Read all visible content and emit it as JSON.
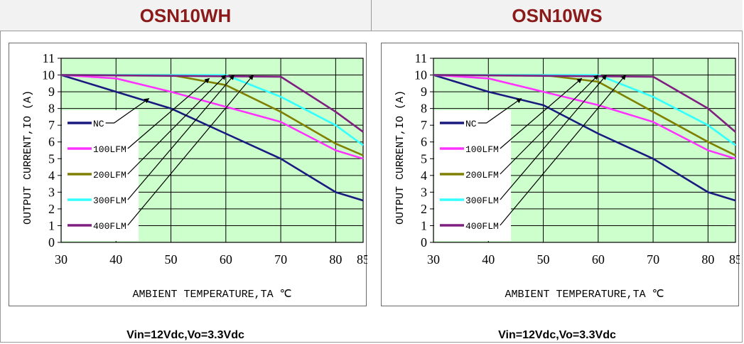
{
  "header": {
    "left_title": "OSN10WH",
    "right_title": "OSN10WS"
  },
  "chart_data": [
    {
      "type": "line",
      "title": "OSN10WH",
      "xlabel": "AMBIENT TEMPERATURE,TA ℃",
      "ylabel": "OUTPUT CURRENT,IO (A)",
      "caption": "Vin=12Vdc,Vo=3.3Vdc",
      "xlim": [
        30,
        85
      ],
      "ylim": [
        0,
        11
      ],
      "xticks": [
        30,
        40,
        50,
        60,
        70,
        80,
        85
      ],
      "yticks": [
        0,
        1,
        2,
        3,
        4,
        5,
        6,
        7,
        8,
        9,
        10,
        11
      ],
      "grid": true,
      "plot_background": "#ccffcc",
      "legend_position": "left",
      "series": [
        {
          "name": "NC",
          "color": "#1a1a80",
          "x": [
            30,
            40,
            50,
            60,
            70,
            80,
            85
          ],
          "y": [
            10,
            9,
            8,
            6.5,
            5,
            3,
            2.5
          ]
        },
        {
          "name": "100LFM",
          "color": "#ff33ff",
          "x": [
            30,
            40,
            50,
            60,
            70,
            80,
            85
          ],
          "y": [
            10,
            9.8,
            9,
            8.1,
            7.2,
            5.5,
            5.0
          ]
        },
        {
          "name": "200LFM",
          "color": "#808000",
          "x": [
            30,
            50,
            60,
            70,
            80,
            85
          ],
          "y": [
            10,
            10,
            9.4,
            7.8,
            5.9,
            5.2
          ]
        },
        {
          "name": "300FLM",
          "color": "#33ffff",
          "x": [
            30,
            60,
            70,
            80,
            85
          ],
          "y": [
            10,
            10,
            8.7,
            7.0,
            5.8
          ]
        },
        {
          "name": "400FLM",
          "color": "#7f1f7f",
          "x": [
            30,
            70,
            80,
            85
          ],
          "y": [
            10,
            9.9,
            7.8,
            6.6
          ]
        }
      ]
    },
    {
      "type": "line",
      "title": "OSN10WS",
      "xlabel": "AMBIENT TEMPERATURE,TA ℃",
      "ylabel": "OUTPUT CURRENT,IO (A)",
      "caption": "Vin=12Vdc,Vo=3.3Vdc",
      "xlim": [
        30,
        85
      ],
      "ylim": [
        0,
        11
      ],
      "xticks": [
        30,
        40,
        50,
        60,
        70,
        80,
        85
      ],
      "yticks": [
        0,
        1,
        2,
        3,
        4,
        5,
        6,
        7,
        8,
        9,
        10,
        11
      ],
      "grid": true,
      "plot_background": "#ccffcc",
      "legend_position": "left",
      "series": [
        {
          "name": "NC",
          "color": "#1a1a80",
          "x": [
            30,
            40,
            50,
            60,
            70,
            80,
            85
          ],
          "y": [
            10,
            9,
            8.2,
            6.5,
            5,
            3,
            2.5
          ]
        },
        {
          "name": "100LFM",
          "color": "#ff33ff",
          "x": [
            30,
            40,
            50,
            60,
            70,
            80,
            85
          ],
          "y": [
            10,
            9.8,
            9,
            8.2,
            7.2,
            5.5,
            5.0
          ]
        },
        {
          "name": "200LFM",
          "color": "#808000",
          "x": [
            30,
            50,
            60,
            70,
            80,
            85
          ],
          "y": [
            10,
            10,
            9.6,
            7.8,
            6.0,
            5.2
          ]
        },
        {
          "name": "300FLM",
          "color": "#33ffff",
          "x": [
            30,
            60,
            70,
            80,
            85
          ],
          "y": [
            10,
            10,
            8.7,
            7.0,
            5.8
          ]
        },
        {
          "name": "400FLM",
          "color": "#7f1f7f",
          "x": [
            30,
            70,
            80,
            85
          ],
          "y": [
            10,
            9.9,
            8.0,
            6.6
          ]
        }
      ]
    }
  ]
}
